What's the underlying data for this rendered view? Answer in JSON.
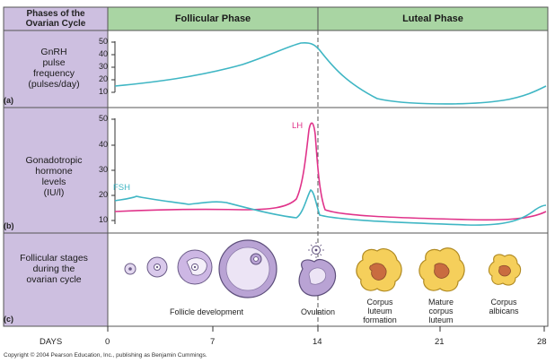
{
  "header": {
    "corner_label": "Phases of the Ovarian Cycle",
    "corner_line1": "Phases of the",
    "corner_line2": "Ovarian Cycle",
    "follicular": "Follicular Phase",
    "luteal": "Luteal Phase"
  },
  "panels": {
    "a": {
      "tag": "(a)",
      "label_lines": [
        "GnRH",
        "pulse",
        "frequency",
        "(pulses/day)"
      ],
      "ticks": [
        "50",
        "40",
        "30",
        "20",
        "10"
      ]
    },
    "b": {
      "tag": "(b)",
      "label_lines": [
        "Gonadotropic",
        "hormone",
        "levels",
        "(IU/l)"
      ],
      "ticks": [
        "50",
        "40",
        "30",
        "20",
        "10"
      ],
      "series_lh": "LH",
      "series_fsh": "FSH"
    },
    "c": {
      "tag": "(c)",
      "label_lines": [
        "Follicular stages",
        "during the",
        "ovarian cycle"
      ],
      "stages": {
        "follicle": "Follicle development",
        "ovulation": "Ovulation",
        "cl_formation": [
          "Corpus",
          "luteum",
          "formation"
        ],
        "mature_cl": [
          "Mature",
          "corpus",
          "luteum"
        ],
        "albicans": [
          "Corpus",
          "albicans"
        ]
      }
    }
  },
  "axis": {
    "days_label": "DAYS",
    "day_ticks": [
      "0",
      "7",
      "14",
      "21",
      "28"
    ]
  },
  "copyright": "Copyright © 2004 Pearson Education, Inc., publishing as Benjamin Cummings.",
  "colors": {
    "header_green": "#a9d5a3",
    "sidebar_lavender": "#cdbfe0",
    "cyan_curve": "#3fb6c4",
    "magenta_curve": "#e0338a",
    "follicle_purple": "#b9a3d4",
    "corpus_yellow": "#f5cf5b"
  }
}
